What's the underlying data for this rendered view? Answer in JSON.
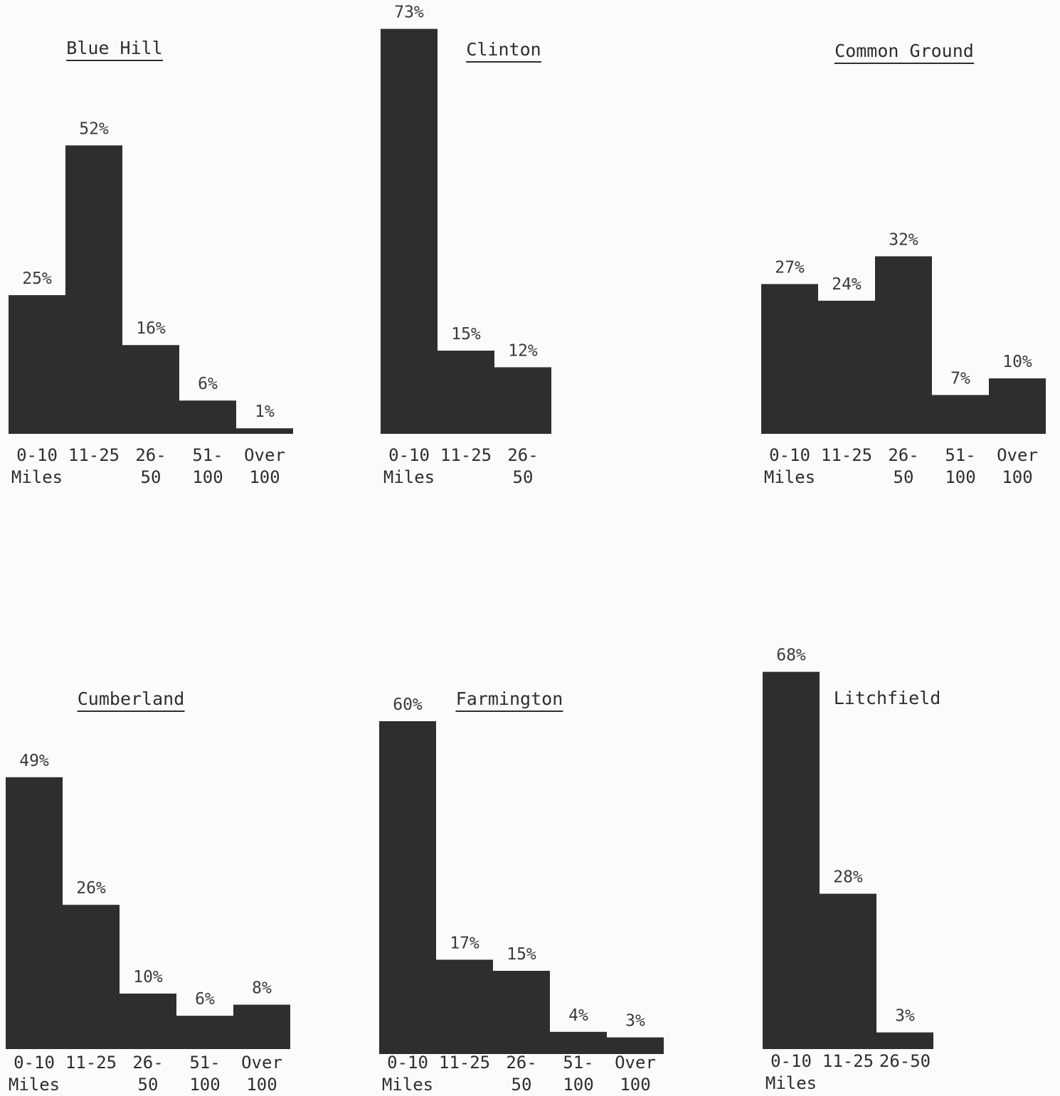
{
  "chart_data": [
    {
      "type": "bar",
      "title": "Blue Hill",
      "categories": [
        "0-10 Miles",
        "11-25",
        "26-50",
        "51-100",
        "Over 100"
      ],
      "tick_lines": [
        [
          "0-10",
          "Miles"
        ],
        [
          "11-25",
          ""
        ],
        [
          "26-",
          "50"
        ],
        [
          "51-",
          "100"
        ],
        [
          "Over",
          "100"
        ]
      ],
      "values": [
        25,
        52,
        16,
        6,
        1
      ],
      "value_labels": [
        "25%",
        "52%",
        "16%",
        "6%",
        "1%"
      ],
      "unit": "%"
    },
    {
      "type": "bar",
      "title": "Clinton",
      "categories": [
        "0-10 Miles",
        "11-25",
        "26-50"
      ],
      "tick_lines": [
        [
          "0-10",
          "Miles"
        ],
        [
          "11-25",
          ""
        ],
        [
          "26-",
          "50"
        ]
      ],
      "values": [
        73,
        15,
        12
      ],
      "value_labels": [
        "73%",
        "15%",
        "12%"
      ],
      "unit": "%"
    },
    {
      "type": "bar",
      "title": "Common Ground",
      "categories": [
        "0-10 Miles",
        "11-25",
        "26-50",
        "51-100",
        "Over 100"
      ],
      "tick_lines": [
        [
          "0-10",
          "Miles"
        ],
        [
          "11-25",
          ""
        ],
        [
          "26-",
          "50"
        ],
        [
          "51-",
          "100"
        ],
        [
          "Over",
          "100"
        ]
      ],
      "values": [
        27,
        24,
        32,
        7,
        10
      ],
      "value_labels": [
        "27%",
        "24%",
        "32%",
        "7%",
        "10%"
      ],
      "unit": "%"
    },
    {
      "type": "bar",
      "title": "Cumberland",
      "categories": [
        "0-10 Miles",
        "11-25",
        "26-50",
        "51-100",
        "Over 100"
      ],
      "tick_lines": [
        [
          "0-10",
          "Miles"
        ],
        [
          "11-25",
          ""
        ],
        [
          "26-",
          "50"
        ],
        [
          "51-",
          "100"
        ],
        [
          "Over",
          "100"
        ]
      ],
      "values": [
        49,
        26,
        10,
        6,
        8
      ],
      "value_labels": [
        "49%",
        "26%",
        "10%",
        "6%",
        "8%"
      ],
      "unit": "%"
    },
    {
      "type": "bar",
      "title": "Farmington",
      "categories": [
        "0-10 Miles",
        "11-25",
        "26-50",
        "51-100",
        "Over 100"
      ],
      "tick_lines": [
        [
          "0-10",
          "Miles"
        ],
        [
          "11-25",
          ""
        ],
        [
          "26-",
          "50"
        ],
        [
          "51-",
          "100"
        ],
        [
          "Over",
          "100"
        ]
      ],
      "values": [
        60,
        17,
        15,
        4,
        3
      ],
      "value_labels": [
        "60%",
        "17%",
        "15%",
        "4%",
        "3%"
      ],
      "unit": "%"
    },
    {
      "type": "bar",
      "title": "Litchfield",
      "categories": [
        "0-10 Miles",
        "11-25",
        "26-50"
      ],
      "tick_lines": [
        [
          "0-10",
          "Miles"
        ],
        [
          "11-25",
          ""
        ],
        [
          "26-50",
          ""
        ]
      ],
      "values": [
        68,
        28,
        3
      ],
      "value_labels": [
        "68%",
        "28%",
        "3%"
      ],
      "unit": "%"
    }
  ]
}
